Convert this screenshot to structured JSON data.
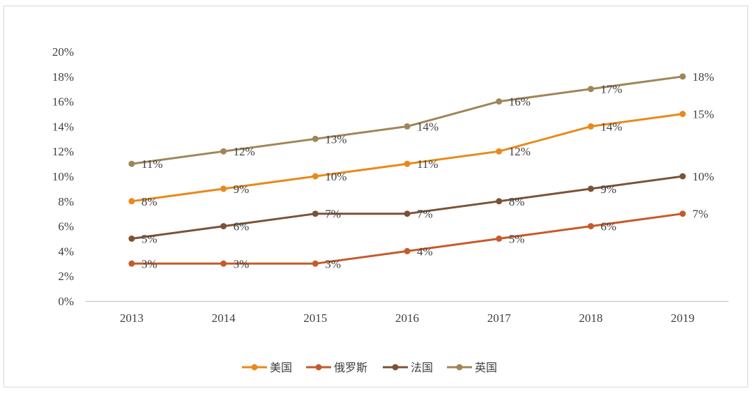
{
  "chart_data": {
    "type": "line",
    "title": "",
    "xlabel": "",
    "ylabel": "",
    "categories": [
      "2013",
      "2014",
      "2015",
      "2016",
      "2017",
      "2018",
      "2019"
    ],
    "ylim": [
      0,
      20
    ],
    "y_ticks": [
      "0%",
      "2%",
      "4%",
      "6%",
      "8%",
      "10%",
      "12%",
      "14%",
      "16%",
      "18%",
      "20%"
    ],
    "grid": false,
    "legend_position": "bottom",
    "series": [
      {
        "name": "美国",
        "color": "#E8891C",
        "values": [
          8,
          9,
          10,
          11,
          12,
          14,
          15
        ],
        "labels": [
          "8%",
          "9%",
          "10%",
          "11%",
          "12%",
          "14%",
          "15%"
        ]
      },
      {
        "name": "俄罗斯",
        "color": "#C55A2A",
        "values": [
          3,
          3,
          3,
          4,
          5,
          6,
          7
        ],
        "labels": [
          "3%",
          "3%",
          "3%",
          "4%",
          "5%",
          "6%",
          "7%"
        ]
      },
      {
        "name": "法国",
        "color": "#7B5237",
        "values": [
          5,
          6,
          7,
          7,
          8,
          9,
          10
        ],
        "labels": [
          "5%",
          "6%",
          "7%",
          "7%",
          "8%",
          "9%",
          "10%"
        ]
      },
      {
        "name": "英国",
        "color": "#A08558",
        "values": [
          11,
          12,
          13,
          14,
          16,
          17,
          18
        ],
        "labels": [
          "11%",
          "12%",
          "13%",
          "14%",
          "16%",
          "17%",
          "18%"
        ]
      }
    ]
  }
}
